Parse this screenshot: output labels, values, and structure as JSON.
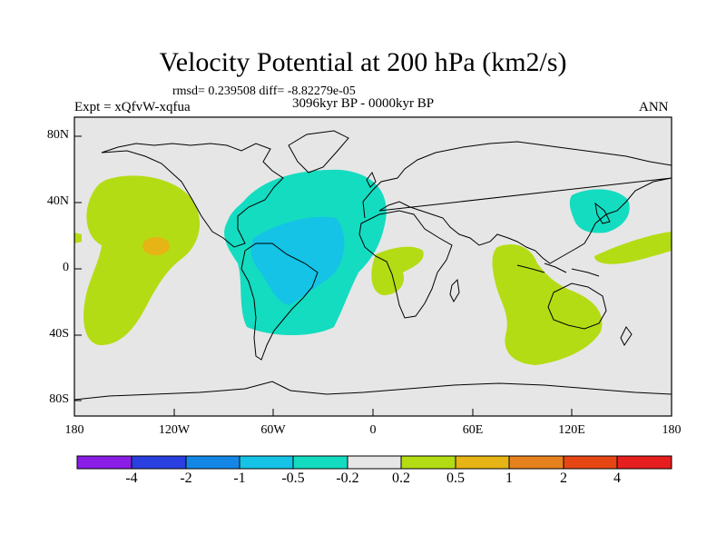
{
  "figure": {
    "title": "Velocity Potential at 200 hPa (km2/s)",
    "stats": "rmsd= 0.239508 diff= -8.82279e-05",
    "experiment": "Expt = xQfvW-xqfua",
    "period": "3096kyr BP - 0000kyr BP",
    "season": "ANN"
  },
  "axes": {
    "y_ticks": [
      "80N",
      "40N",
      "0",
      "40S",
      "80S"
    ],
    "x_ticks": [
      "180",
      "120W",
      "60W",
      "0",
      "60E",
      "120E",
      "180"
    ]
  },
  "colorbar": {
    "labels": [
      "-4",
      "-2",
      "-1",
      "-0.5",
      "-0.2",
      "0.2",
      "0.5",
      "1",
      "2",
      "4"
    ],
    "colors": [
      "#8a1ee6",
      "#2a3fe0",
      "#1487e6",
      "#14c3e6",
      "#14dcc0",
      "#e6e6e6",
      "#b4dc14",
      "#e6b414",
      "#e6821e",
      "#e64614",
      "#e61e1e"
    ]
  },
  "map_colors": {
    "background": "#e6e6e6",
    "positive_weak": "#b4dc14",
    "positive_mid": "#e6b414",
    "negative_weak": "#14dcc0",
    "negative_mid": "#14c3e6"
  }
}
